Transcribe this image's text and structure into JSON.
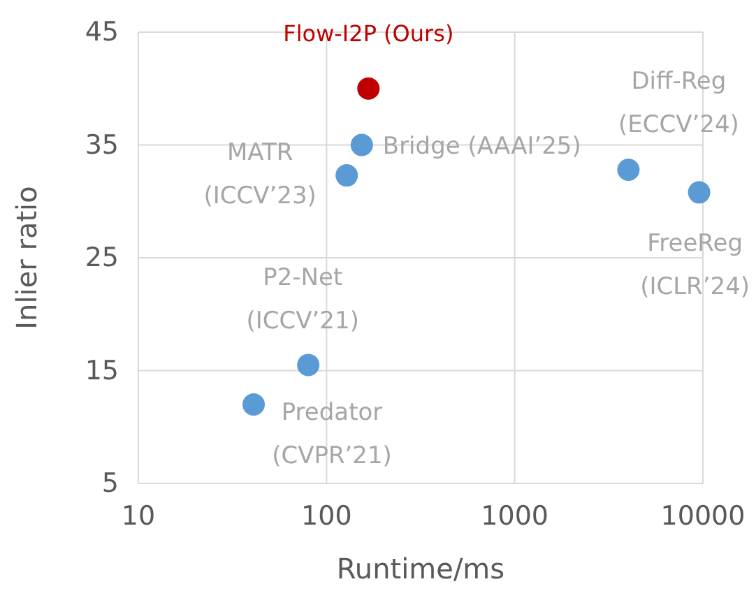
{
  "chart_data": {
    "type": "scatter",
    "xlabel": "Runtime/ms",
    "ylabel": "Inlier ratio",
    "log": "x",
    "x": [
      167,
      154,
      128,
      80,
      41,
      4020,
      9550
    ],
    "values": [
      40,
      35,
      32.3,
      15.5,
      12,
      32.8,
      30.8
    ],
    "colors": [
      "#c00000",
      "#5b9bd5",
      "#5b9bd5",
      "#5b9bd5",
      "#5b9bd5",
      "#5b9bd5",
      "#5b9bd5"
    ],
    "xlim": [
      10,
      10000
    ],
    "xticks": [
      10,
      100,
      1000,
      10000
    ],
    "ylim": [
      5,
      45
    ],
    "yticks": [
      5,
      15,
      25,
      35,
      45
    ],
    "grid": true,
    "marker": "circle",
    "annotations": [
      {
        "text": "Flow-I2P (Ours)",
        "x": 167,
        "y": 40
      },
      {
        "text": "Bridge (AAAI’25)",
        "x": 154,
        "y": 35
      },
      {
        "text": "MATR\n(ICCV’23)",
        "x": 128,
        "y": 32.3
      },
      {
        "text": "P2-Net\n(ICCV’21)",
        "x": 80,
        "y": 15.5
      },
      {
        "text": "Predator\n(CVPR’21)",
        "x": 41,
        "y": 12
      },
      {
        "text": "Diff-Reg\n(ECCV’24)",
        "x": 4020,
        "y": 32.8
      },
      {
        "text": "FreeReg\n(ICLR’24)",
        "x": 9550,
        "y": 30.8
      }
    ]
  }
}
